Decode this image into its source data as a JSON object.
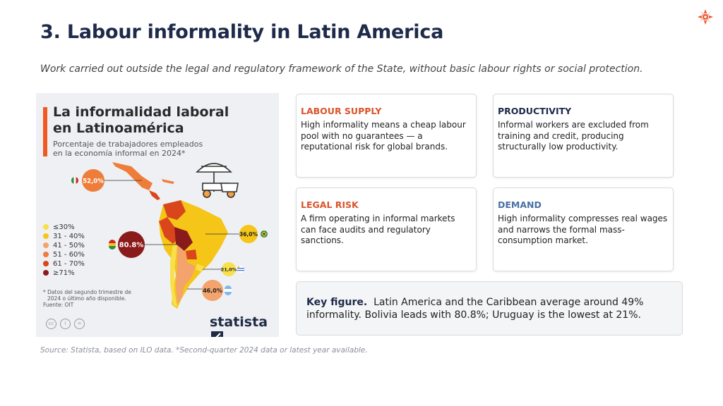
{
  "page": {
    "title": "3. Labour informality in Latin America",
    "subtitle": "Work carried out outside the legal and regulatory framework of the State, without basic labour rights or social protection.",
    "source": "Source: Statista, based on ILO data. *Second-quarter 2024 data or latest year available."
  },
  "colors": {
    "accent": "#e8542a",
    "navy": "#1e2a4a",
    "demand": "#4a6fa5"
  },
  "infographic": {
    "title_line1": "La informalidad laboral",
    "title_line2": "en Latinoamérica",
    "subtitle_line1": "Porcentaje de trabajadores empleados",
    "subtitle_line2": "en la economía informal en 2024*",
    "callouts": {
      "mexico": "52,0%",
      "bolivia": "80.8%",
      "brazil": "36,0%",
      "uruguay": "21,0%",
      "argentina": "46,0%"
    },
    "legend": [
      {
        "label": "≤30%",
        "color": "#f7e04a"
      },
      {
        "label": "31 - 40%",
        "color": "#f5c518"
      },
      {
        "label": "41 - 50%",
        "color": "#f3a36b"
      },
      {
        "label": "51 - 60%",
        "color": "#ef7d3a"
      },
      {
        "label": "61 - 70%",
        "color": "#d9461c"
      },
      {
        "label": "≥71%",
        "color": "#8b1a1a"
      }
    ],
    "note_line1": "* Datos del segundo trimestre de",
    "note_line2": "2024 o último año disponible.",
    "note_line3": "Fuente: OIT",
    "brand": "statista"
  },
  "cards": [
    {
      "title": "LABOUR SUPPLY",
      "text": "High informality means a cheap labour pool with no guarantees — a reputational risk for global brands.",
      "color": "#d9542a"
    },
    {
      "title": "PRODUCTIVITY",
      "text": "Informal workers are excluded from training and credit, producing structurally low productivity.",
      "color": "#1e2a4a"
    },
    {
      "title": "LEGAL RISK",
      "text": "A firm operating in informal markets can face audits and regulatory sanctions.",
      "color": "#d9542a"
    },
    {
      "title": "DEMAND",
      "text": "High informality compresses real wages and narrows the formal mass-consumption market.",
      "color": "#4a6fa5"
    }
  ],
  "key_figure": {
    "label": "Key figure.",
    "text": "Latin America and the Caribbean average around 49% informality. Bolivia leads with 80.8%; Uruguay is the lowest at 21%."
  }
}
